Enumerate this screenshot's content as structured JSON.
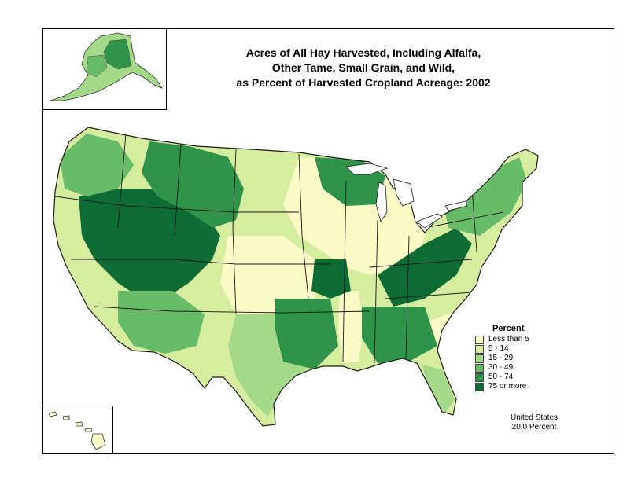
{
  "title": {
    "line1": "Acres of All Hay Harvested, Including Alfalfa,",
    "line2": "Other Tame, Small Grain, and Wild,",
    "line3": "as Percent of Harvested Cropland Acreage:  2002"
  },
  "legend": {
    "title": "Percent",
    "classes": [
      {
        "label": "Less than 5",
        "color": "#fbfbc8"
      },
      {
        "label": "5 - 14",
        "color": "#d6eda0"
      },
      {
        "label": "15 - 29",
        "color": "#a5d98a"
      },
      {
        "label": "30 - 49",
        "color": "#68bb68"
      },
      {
        "label": "50 - 74",
        "color": "#2f934a"
      },
      {
        "label": "75 or more",
        "color": "#0f6b34"
      }
    ]
  },
  "summary": {
    "line1": "United States",
    "line2": "20.0 Percent"
  },
  "colors": {
    "border": "#000000",
    "state_outline": "#1a1a1a",
    "water": "#ffffff"
  }
}
